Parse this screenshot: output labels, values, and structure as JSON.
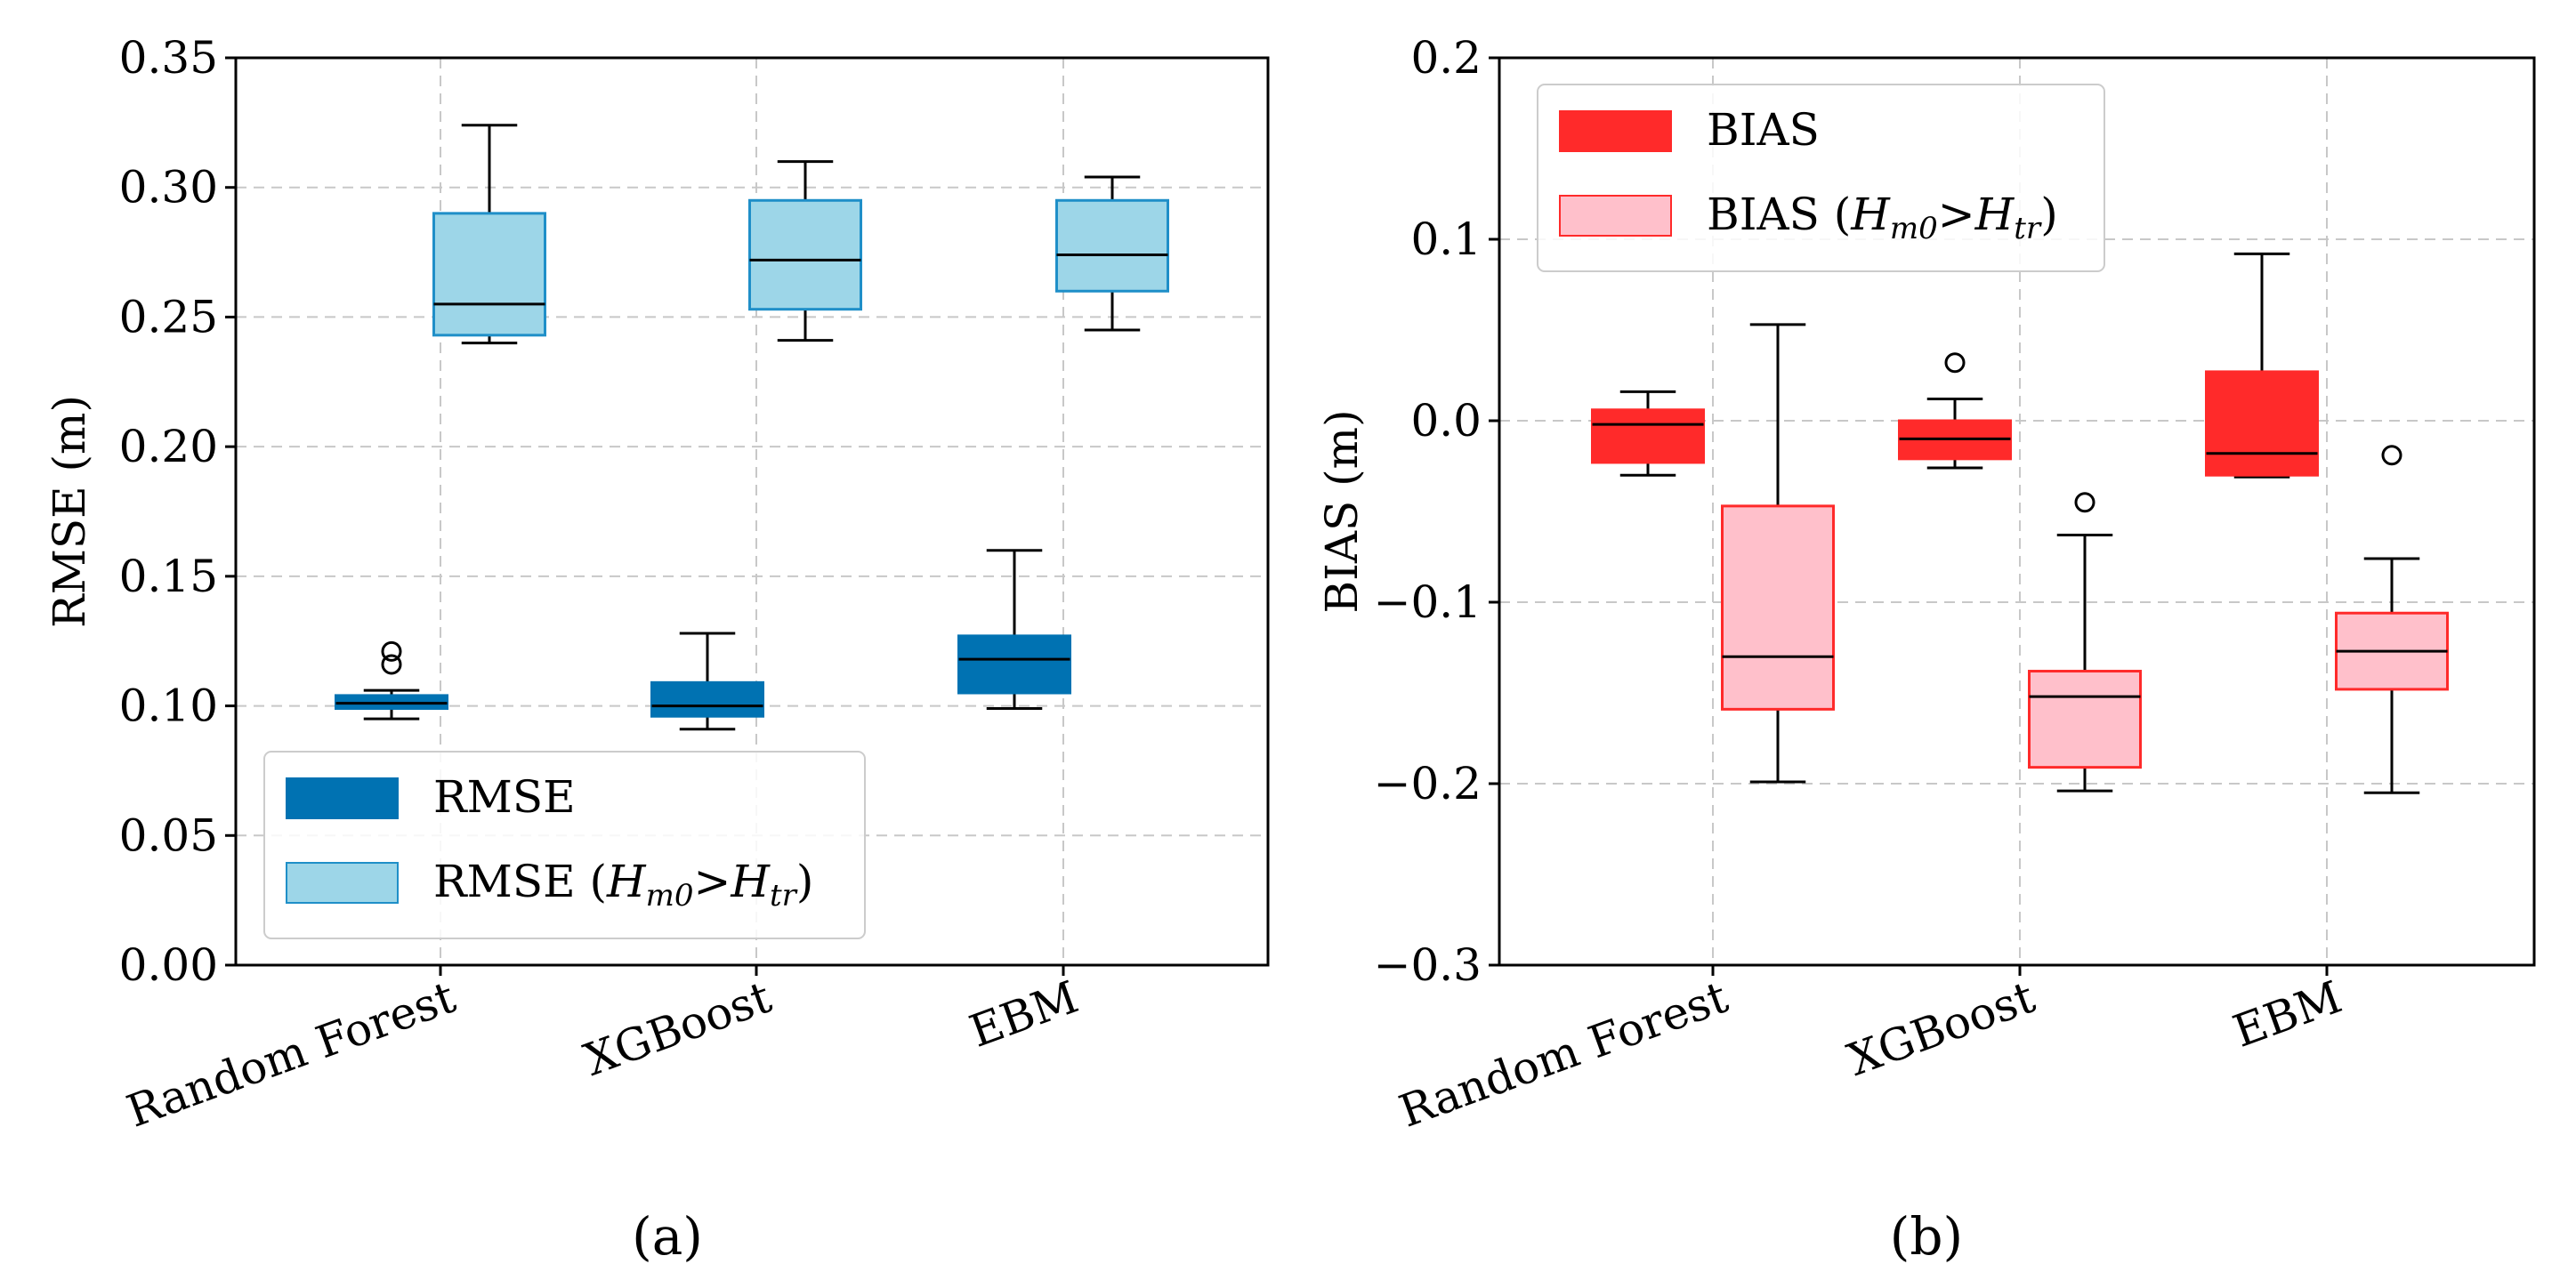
{
  "chart_data": [
    {
      "panel_label": "(a)",
      "type": "box",
      "ylabel": "RMSE (m)",
      "ylim": [
        0,
        0.35
      ],
      "yticks": [
        "0.00",
        "0.05",
        "0.10",
        "0.15",
        "0.20",
        "0.25",
        "0.30",
        "0.35"
      ],
      "categories": [
        "Random Forest",
        "XGBoost",
        "EBM"
      ],
      "grid": true,
      "legend_position": "lower-left",
      "series": [
        {
          "name": "RMSE",
          "color": "#0072B2",
          "edge": "#0072B2",
          "boxes": [
            {
              "whislo": 0.095,
              "q1": 0.099,
              "med": 0.101,
              "q3": 0.104,
              "whishi": 0.106,
              "fliers": [
                0.116,
                0.121
              ]
            },
            {
              "whislo": 0.091,
              "q1": 0.096,
              "med": 0.1,
              "q3": 0.109,
              "whishi": 0.128,
              "fliers": []
            },
            {
              "whislo": 0.099,
              "q1": 0.105,
              "med": 0.118,
              "q3": 0.127,
              "whishi": 0.16,
              "fliers": []
            }
          ]
        },
        {
          "name": "RMSE (Hm0>Htr)",
          "legend_parts": {
            "prefix": "RMSE (",
            "h1": "H",
            "s1": "m0",
            "op": ">",
            "h2": "H",
            "s2": "tr",
            "suffix": ")"
          },
          "color": "#9dd6e8",
          "edge": "#1f8fc8",
          "boxes": [
            {
              "whislo": 0.24,
              "q1": 0.243,
              "med": 0.255,
              "q3": 0.29,
              "whishi": 0.324,
              "fliers": []
            },
            {
              "whislo": 0.241,
              "q1": 0.253,
              "med": 0.272,
              "q3": 0.295,
              "whishi": 0.31,
              "fliers": []
            },
            {
              "whislo": 0.245,
              "q1": 0.26,
              "med": 0.274,
              "q3": 0.295,
              "whishi": 0.304,
              "fliers": []
            }
          ]
        }
      ]
    },
    {
      "panel_label": "(b)",
      "type": "box",
      "ylabel": "BIAS (m)",
      "ylim": [
        -0.3,
        0.2
      ],
      "yticks": [
        "−0.3",
        "−0.2",
        "−0.1",
        "0.0",
        "0.1",
        "0.2"
      ],
      "categories": [
        "Random Forest",
        "XGBoost",
        "EBM"
      ],
      "grid": true,
      "legend_position": "upper-left",
      "series": [
        {
          "name": "BIAS",
          "color": "#ff2a2a",
          "edge": "#ff2a2a",
          "boxes": [
            {
              "whislo": -0.03,
              "q1": -0.023,
              "med": -0.002,
              "q3": 0.006,
              "whishi": 0.016,
              "fliers": []
            },
            {
              "whislo": -0.026,
              "q1": -0.021,
              "med": -0.01,
              "q3": 0.0,
              "whishi": 0.012,
              "fliers": [
                0.032
              ]
            },
            {
              "whislo": -0.031,
              "q1": -0.03,
              "med": -0.018,
              "q3": 0.027,
              "whishi": 0.092,
              "fliers": []
            }
          ]
        },
        {
          "name": "BIAS (Hm0>Htr)",
          "legend_parts": {
            "prefix": "BIAS (",
            "h1": "H",
            "s1": "m0",
            "op": ">",
            "h2": "H",
            "s2": "tr",
            "suffix": ")"
          },
          "color": "#ffc0cb",
          "edge": "#ff2a2a",
          "boxes": [
            {
              "whislo": -0.199,
              "q1": -0.159,
              "med": -0.13,
              "q3": -0.047,
              "whishi": 0.053,
              "fliers": []
            },
            {
              "whislo": -0.204,
              "q1": -0.191,
              "med": -0.152,
              "q3": -0.138,
              "whishi": -0.063,
              "fliers": [
                -0.045
              ]
            },
            {
              "whislo": -0.205,
              "q1": -0.148,
              "med": -0.127,
              "q3": -0.106,
              "whishi": -0.076,
              "fliers": [
                -0.019
              ]
            }
          ]
        }
      ]
    }
  ]
}
